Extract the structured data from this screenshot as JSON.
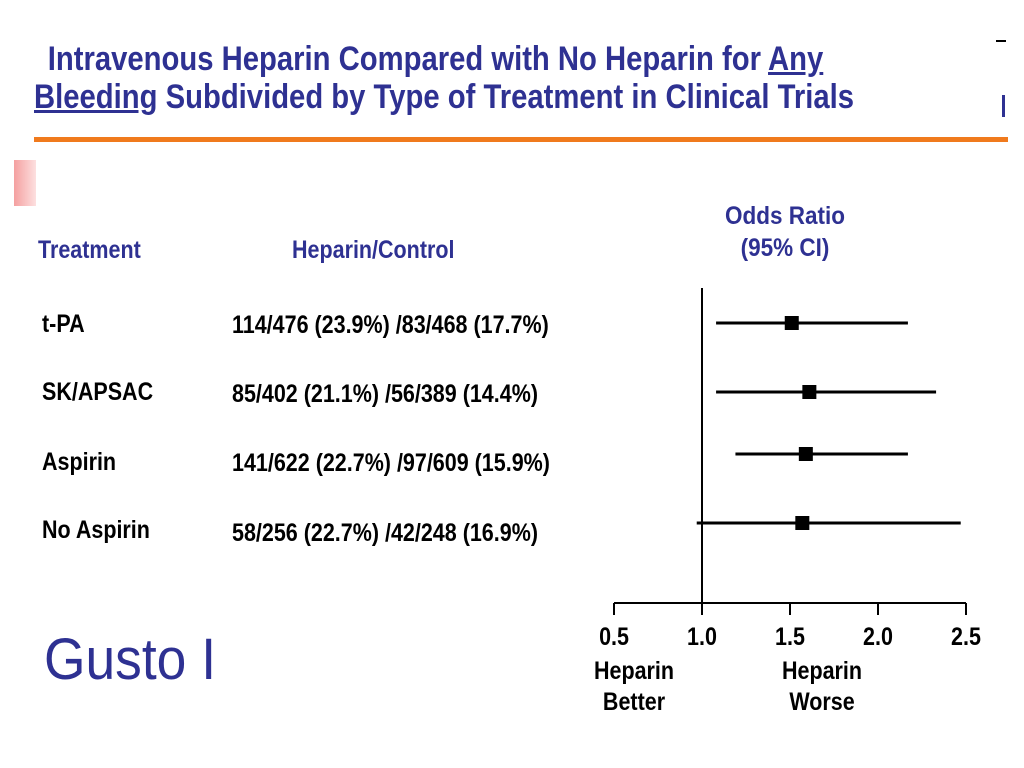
{
  "title": {
    "line1_pre": "Intravenous Heparin Compared with No Heparin for ",
    "line1_underlined": "Any",
    "line2_underlined": "Bleeding",
    "line2_post": " Subdivided by Type of Treatment in Clinical Trials"
  },
  "table": {
    "col_treatment": "Treatment",
    "col_counts": "Heparin/Control",
    "col_or_line1": "Odds Ratio",
    "col_or_line2": "(95% CI)"
  },
  "footer": "Gusto I",
  "chart_data": {
    "type": "forest",
    "reference_line": 1.0,
    "xlim": [
      0.5,
      2.5
    ],
    "xticks": [
      "0.5",
      "1.0",
      "1.5",
      "2.0",
      "2.5"
    ],
    "xtick_values": [
      0.5,
      1.0,
      1.5,
      2.0,
      2.5
    ],
    "x_label_left": [
      "Heparin",
      "Better"
    ],
    "x_label_right": [
      "Heparin",
      "Worse"
    ],
    "rows": [
      {
        "treatment": "t-PA",
        "counts": "114/476 (23.9%) /83/468 (17.7%)",
        "or": 1.51,
        "ci": [
          1.08,
          2.17
        ]
      },
      {
        "treatment": "SK/APSAC",
        "counts": "85/402 (21.1%) /56/389 (14.4%)",
        "or": 1.61,
        "ci": [
          1.08,
          2.33
        ]
      },
      {
        "treatment": "Aspirin",
        "counts": "141/622 (22.7%) /97/609 (15.9%)",
        "or": 1.59,
        "ci": [
          1.19,
          2.17
        ]
      },
      {
        "treatment": "No Aspirin",
        "counts": "58/256 (22.7%) /42/248 (16.9%)",
        "or": 1.57,
        "ci": [
          0.97,
          2.47
        ]
      }
    ]
  },
  "colors": {
    "title": "#2e3192",
    "rule": "#f07a1d",
    "marks": "#000000"
  }
}
